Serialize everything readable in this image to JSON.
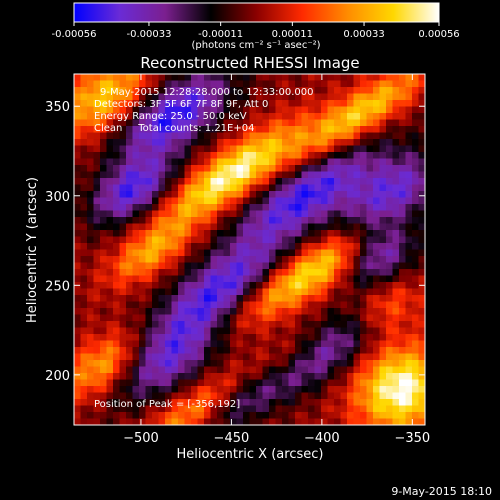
{
  "chart_data": {
    "type": "heatmap",
    "title": "Reconstructed RHESSI Image",
    "xlabel": "Heliocentric X (arcsec)",
    "ylabel": "Heliocentric Y (arcsec)",
    "xlim": [
      -537,
      -343
    ],
    "ylim": [
      172,
      368
    ],
    "x_ticks": [
      -500,
      -450,
      -400,
      -350
    ],
    "y_ticks": [
      200,
      250,
      300,
      350
    ],
    "colorbar": {
      "range": [
        -0.00056,
        0.00056
      ],
      "ticks": [
        -0.00056,
        -0.00033,
        -0.00011,
        0.00011,
        0.00033,
        0.00056
      ],
      "tick_labels": [
        "-0.00056",
        "-0.00033",
        "-0.00011",
        "0.00011",
        "0.00033",
        "0.00056"
      ],
      "units_label": "(photons cm⁻² s⁻¹ asec⁻²)",
      "colors": [
        "#0000ff",
        "#6a2bd6",
        "#7b1f8f",
        "#000000",
        "#8b0000",
        "#ff2a00",
        "#ff8c00",
        "#ffd700",
        "#ffffff"
      ]
    },
    "annotations": [
      "9-May-2015 12:28:28.000 to 12:33:00.000",
      "Detectors: 3F 5F 6F 7F 8F 9F, Att 0",
      "Energy Range: 25.0 - 50.0 keV",
      "Clean     Total counts: 1.21E+04"
    ],
    "peak_label": "Position of Peak = [-356,192]",
    "peak": [
      -356,
      192
    ],
    "grid": false
  },
  "footer_timestamp": "9-May-2015 18:10"
}
